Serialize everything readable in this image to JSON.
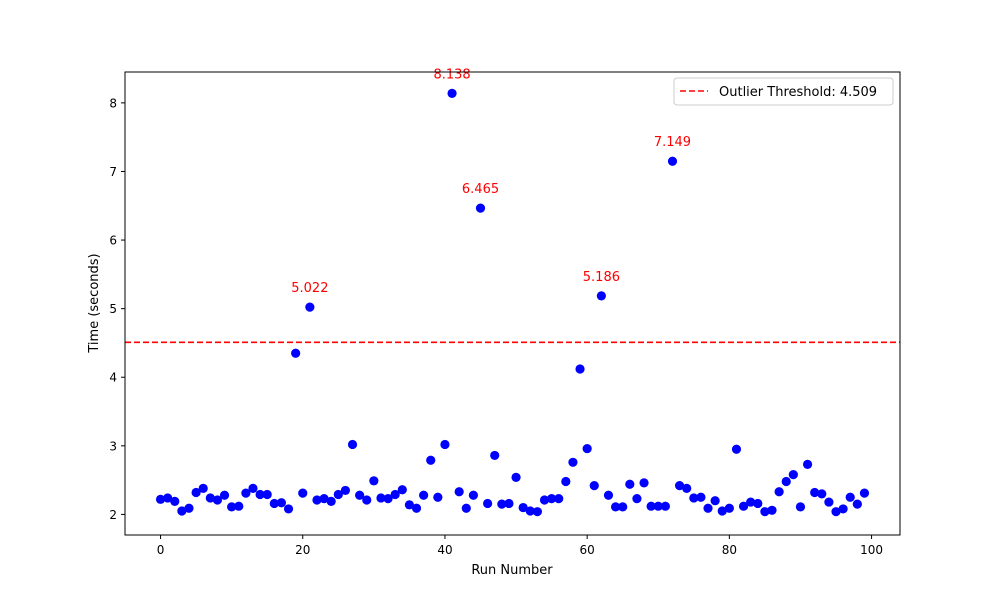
{
  "chart_data": {
    "type": "scatter",
    "title": "",
    "xlabel": "Run Number",
    "ylabel": "Time (seconds)",
    "xlim": [
      -5,
      104
    ],
    "ylim": [
      1.7,
      8.45
    ],
    "x_ticks": [
      0,
      20,
      40,
      60,
      80,
      100
    ],
    "y_ticks": [
      2,
      3,
      4,
      5,
      6,
      7,
      8
    ],
    "grid": false,
    "legend_position": "upper-right",
    "point_color": "#0000ff",
    "threshold_color": "#ff0000",
    "annotation_color": "#ff0000",
    "threshold": {
      "value": 4.509,
      "label": "Outlier Threshold: 4.509"
    },
    "x": [
      0,
      1,
      2,
      3,
      4,
      5,
      6,
      7,
      8,
      9,
      10,
      11,
      12,
      13,
      14,
      15,
      16,
      17,
      18,
      19,
      20,
      21,
      22,
      23,
      24,
      25,
      26,
      27,
      28,
      29,
      30,
      31,
      32,
      33,
      34,
      35,
      36,
      37,
      38,
      39,
      40,
      41,
      42,
      43,
      44,
      45,
      46,
      47,
      48,
      49,
      50,
      51,
      52,
      53,
      54,
      55,
      56,
      57,
      58,
      59,
      60,
      61,
      62,
      63,
      64,
      65,
      66,
      67,
      68,
      69,
      70,
      71,
      72,
      73,
      74,
      75,
      76,
      77,
      78,
      79,
      80,
      81,
      82,
      83,
      84,
      85,
      86,
      87,
      88,
      89,
      90,
      91,
      92,
      93,
      94,
      95,
      96,
      97,
      98,
      99
    ],
    "y": [
      2.22,
      2.24,
      2.19,
      2.05,
      2.09,
      2.32,
      2.38,
      2.24,
      2.21,
      2.28,
      2.11,
      2.12,
      2.31,
      2.38,
      2.29,
      2.29,
      2.16,
      2.17,
      2.08,
      4.35,
      2.31,
      5.022,
      2.21,
      2.23,
      2.19,
      2.29,
      2.35,
      3.02,
      2.28,
      2.21,
      2.49,
      2.24,
      2.23,
      2.29,
      2.36,
      2.14,
      2.09,
      2.28,
      2.79,
      2.25,
      3.02,
      8.138,
      2.33,
      2.09,
      2.28,
      6.465,
      2.16,
      2.86,
      2.15,
      2.16,
      2.54,
      2.1,
      2.05,
      2.04,
      2.21,
      2.23,
      2.23,
      2.48,
      2.76,
      4.12,
      2.96,
      2.42,
      5.186,
      2.28,
      2.11,
      2.11,
      2.44,
      2.23,
      2.46,
      2.12,
      2.12,
      2.12,
      7.149,
      2.42,
      2.38,
      2.24,
      2.25,
      2.09,
      2.2,
      2.05,
      2.09,
      2.95,
      2.12,
      2.18,
      2.16,
      2.04,
      2.06,
      2.33,
      2.48,
      2.58,
      2.11,
      2.73,
      2.32,
      2.3,
      2.18,
      2.04,
      2.08,
      2.25,
      2.15,
      2.31
    ],
    "annotations": [
      {
        "x": 21,
        "y": 5.022,
        "text": "5.022"
      },
      {
        "x": 41,
        "y": 8.138,
        "text": "8.138"
      },
      {
        "x": 45,
        "y": 6.465,
        "text": "6.465"
      },
      {
        "x": 62,
        "y": 5.186,
        "text": "5.186"
      },
      {
        "x": 72,
        "y": 7.149,
        "text": "7.149"
      }
    ]
  }
}
